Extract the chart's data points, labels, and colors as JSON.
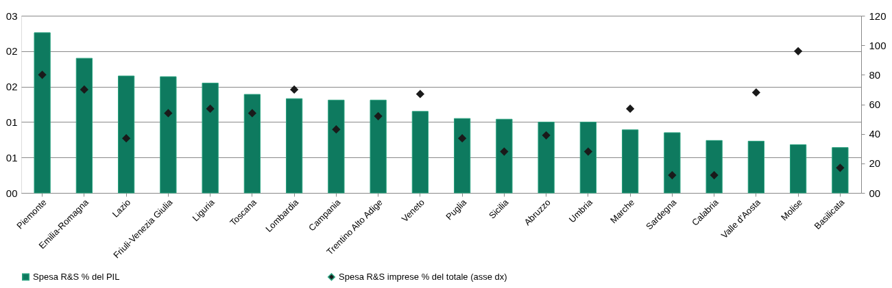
{
  "chart_data": {
    "type": "bar",
    "categories": [
      "Piemonte",
      "Emilia-Romagna",
      "Lazio",
      "Friuli-Venezia Giulia",
      "Liguria",
      "Toscana",
      "Lombardia",
      "Campania",
      "Trentino Alto Adige",
      "Veneto",
      "Puglia",
      "Sicilia",
      "Abruzzo",
      "Umbria",
      "Marche",
      "Sardegna",
      "Calabria",
      "Valle d'Aosta",
      "Molise",
      "Basilicata"
    ],
    "series": [
      {
        "name": "Spesa R&S % del PIL",
        "color": "#0e7a5f",
        "values": [
          2.26,
          1.9,
          1.65,
          1.64,
          1.55,
          1.39,
          1.33,
          1.31,
          1.31,
          1.15,
          1.05,
          1.04,
          1.0,
          1.0,
          0.89,
          0.85,
          0.74,
          0.73,
          0.68,
          0.64
        ]
      },
      {
        "name": "Spesa R&S imprese % del totale (asse dx)",
        "type": "scatter",
        "axis": "y2",
        "marker": "diamond",
        "color": "#1a1a1a",
        "values": [
          80,
          70,
          37,
          54,
          57,
          54,
          70,
          43,
          52,
          67,
          37,
          28,
          39,
          28,
          57,
          12,
          12,
          68,
          96,
          17
        ]
      }
    ],
    "ylim": [
      0,
      2.5
    ],
    "yticks": [
      {
        "value": 0,
        "label": "00"
      },
      {
        "value": 0.5,
        "label": "01"
      },
      {
        "value": 1.0,
        "label": "01"
      },
      {
        "value": 1.5,
        "label": "02"
      },
      {
        "value": 2.0,
        "label": "02"
      },
      {
        "value": 2.5,
        "label": "03"
      }
    ],
    "y2lim": [
      0,
      120
    ],
    "y2ticks": [
      {
        "value": 0,
        "label": "00"
      },
      20,
      40,
      60,
      80,
      100,
      120
    ],
    "grid": "y",
    "legend": "bottom"
  }
}
